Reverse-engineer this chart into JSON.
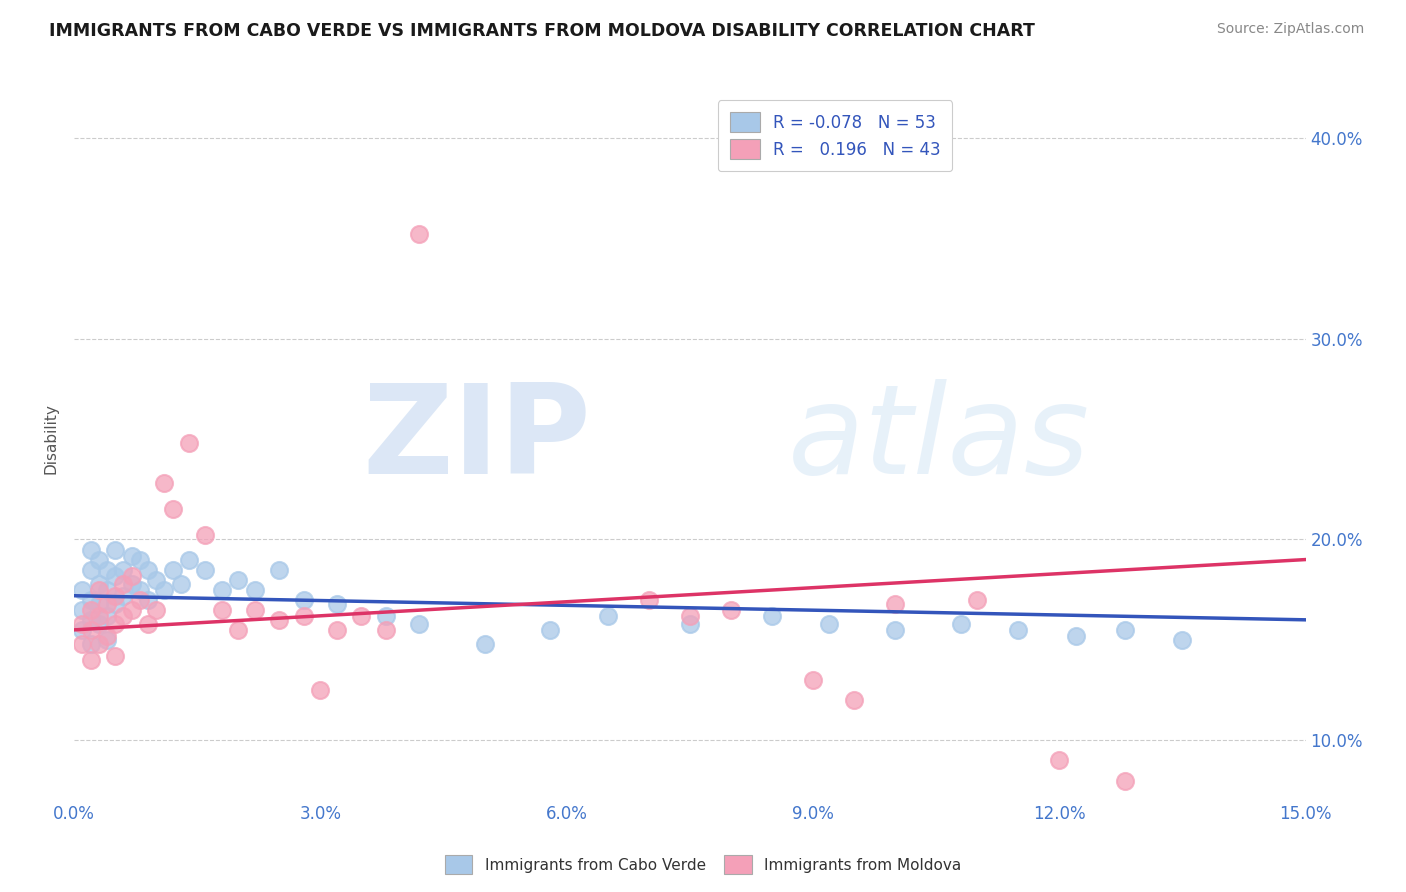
{
  "title": "IMMIGRANTS FROM CABO VERDE VS IMMIGRANTS FROM MOLDOVA DISABILITY CORRELATION CHART",
  "source_text": "Source: ZipAtlas.com",
  "ylabel": "Disability",
  "xlim": [
    0.0,
    0.15
  ],
  "ylim": [
    0.07,
    0.43
  ],
  "xticks": [
    0.0,
    0.03,
    0.06,
    0.09,
    0.12,
    0.15
  ],
  "xtick_labels": [
    "0.0%",
    "3.0%",
    "6.0%",
    "9.0%",
    "12.0%",
    "15.0%"
  ],
  "yticks": [
    0.1,
    0.2,
    0.3,
    0.4
  ],
  "ytick_labels": [
    "10.0%",
    "20.0%",
    "30.0%",
    "40.0%"
  ],
  "cabo_verde_color": "#a8c8e8",
  "moldova_color": "#f4a0b8",
  "cabo_verde_line_color": "#3355bb",
  "moldova_line_color": "#dd3366",
  "cabo_verde_R": -0.078,
  "cabo_verde_N": 53,
  "moldova_R": 0.196,
  "moldova_N": 43,
  "legend_label_1": "Immigrants from Cabo Verde",
  "legend_label_2": "Immigrants from Moldova",
  "watermark_zip": "ZIP",
  "watermark_atlas": "atlas",
  "cabo_verde_x": [
    0.001,
    0.001,
    0.001,
    0.002,
    0.002,
    0.002,
    0.002,
    0.002,
    0.003,
    0.003,
    0.003,
    0.003,
    0.004,
    0.004,
    0.004,
    0.004,
    0.005,
    0.005,
    0.005,
    0.006,
    0.006,
    0.007,
    0.007,
    0.008,
    0.008,
    0.009,
    0.009,
    0.01,
    0.011,
    0.012,
    0.013,
    0.014,
    0.016,
    0.018,
    0.02,
    0.022,
    0.025,
    0.028,
    0.032,
    0.038,
    0.042,
    0.05,
    0.058,
    0.065,
    0.075,
    0.085,
    0.092,
    0.1,
    0.108,
    0.115,
    0.122,
    0.128,
    0.135
  ],
  "cabo_verde_y": [
    0.175,
    0.165,
    0.155,
    0.195,
    0.185,
    0.17,
    0.16,
    0.148,
    0.19,
    0.178,
    0.168,
    0.158,
    0.185,
    0.175,
    0.162,
    0.15,
    0.195,
    0.182,
    0.168,
    0.185,
    0.172,
    0.192,
    0.178,
    0.19,
    0.175,
    0.185,
    0.17,
    0.18,
    0.175,
    0.185,
    0.178,
    0.19,
    0.185,
    0.175,
    0.18,
    0.175,
    0.185,
    0.17,
    0.168,
    0.162,
    0.158,
    0.148,
    0.155,
    0.162,
    0.158,
    0.162,
    0.158,
    0.155,
    0.158,
    0.155,
    0.152,
    0.155,
    0.15
  ],
  "moldova_x": [
    0.001,
    0.001,
    0.002,
    0.002,
    0.002,
    0.003,
    0.003,
    0.003,
    0.004,
    0.004,
    0.005,
    0.005,
    0.005,
    0.006,
    0.006,
    0.007,
    0.007,
    0.008,
    0.009,
    0.01,
    0.011,
    0.012,
    0.014,
    0.016,
    0.018,
    0.02,
    0.022,
    0.025,
    0.028,
    0.03,
    0.032,
    0.035,
    0.038,
    0.042,
    0.07,
    0.075,
    0.08,
    0.09,
    0.095,
    0.1,
    0.11,
    0.12,
    0.128
  ],
  "moldova_y": [
    0.158,
    0.148,
    0.165,
    0.155,
    0.14,
    0.175,
    0.162,
    0.148,
    0.168,
    0.152,
    0.172,
    0.158,
    0.142,
    0.178,
    0.162,
    0.182,
    0.165,
    0.17,
    0.158,
    0.165,
    0.228,
    0.215,
    0.248,
    0.202,
    0.165,
    0.155,
    0.165,
    0.16,
    0.162,
    0.125,
    0.155,
    0.162,
    0.155,
    0.352,
    0.17,
    0.162,
    0.165,
    0.13,
    0.12,
    0.168,
    0.17,
    0.09,
    0.08
  ]
}
